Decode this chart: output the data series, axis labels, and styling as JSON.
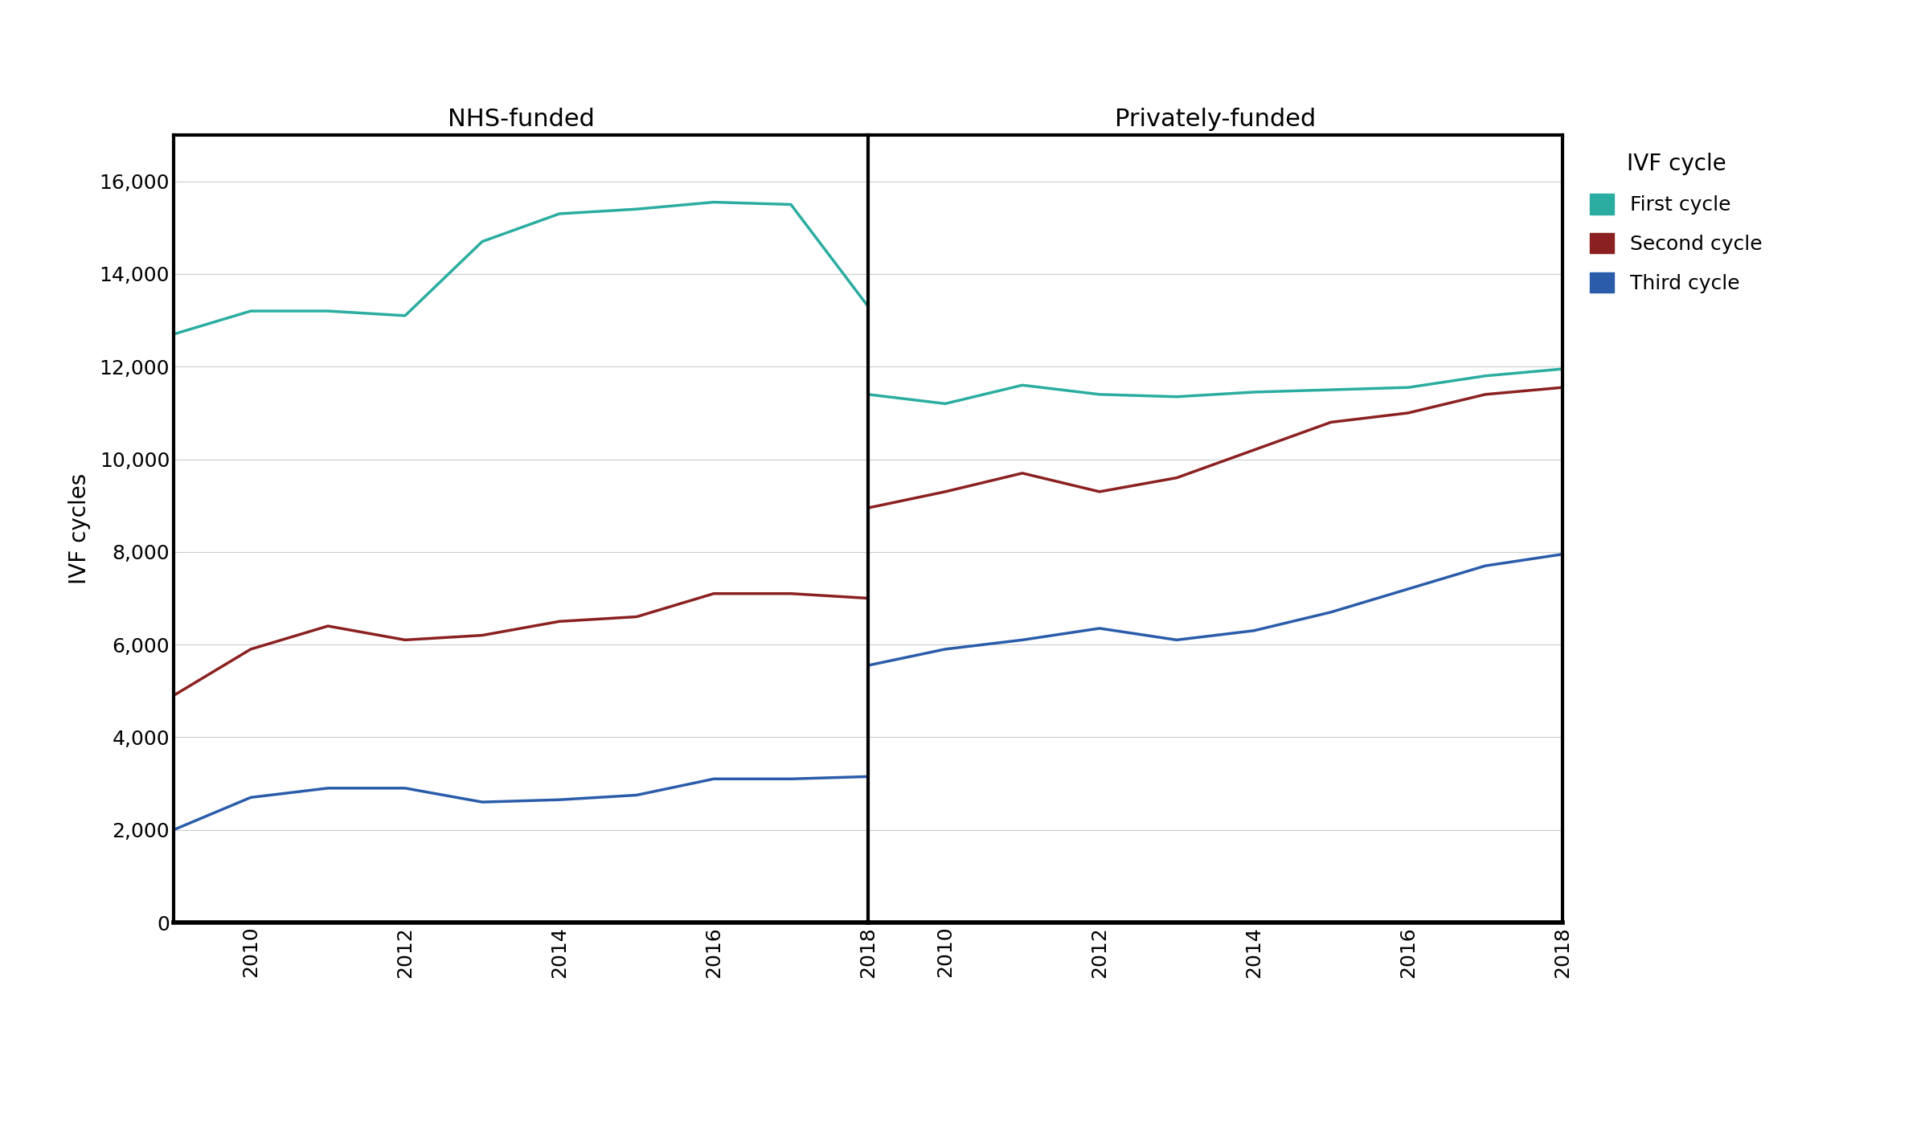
{
  "years": [
    2009,
    2010,
    2011,
    2012,
    2013,
    2014,
    2015,
    2016,
    2017,
    2018
  ],
  "nhs_first": [
    12700,
    13200,
    13200,
    13100,
    14700,
    15300,
    15400,
    15550,
    15500,
    13300
  ],
  "nhs_second": [
    4900,
    5900,
    6400,
    6100,
    6200,
    6500,
    6600,
    7100,
    7100,
    7000
  ],
  "nhs_third": [
    2000,
    2700,
    2900,
    2900,
    2600,
    2650,
    2750,
    3100,
    3100,
    3150
  ],
  "priv_first": [
    11400,
    11200,
    11600,
    11400,
    11350,
    11450,
    11500,
    11550,
    11800,
    11950
  ],
  "priv_second": [
    8950,
    9300,
    9700,
    9300,
    9600,
    10200,
    10800,
    11000,
    11400,
    11550
  ],
  "priv_third": [
    5550,
    5900,
    6100,
    6350,
    6100,
    6300,
    6700,
    7200,
    7700,
    7950
  ],
  "color_first": "#2aada0",
  "color_second": "#8b2020",
  "color_third": "#2a5caa",
  "ylabel": "IVF cycles",
  "title_nhs": "NHS-funded",
  "title_priv": "Privately-funded",
  "legend_title": "IVF cycle",
  "legend_labels": [
    "First cycle",
    "Second cycle",
    "Third cycle"
  ],
  "ylim": [
    0,
    17000
  ],
  "yticks": [
    0,
    2000,
    4000,
    6000,
    8000,
    10000,
    12000,
    14000,
    16000
  ],
  "xtick_years": [
    2010,
    2012,
    2014,
    2016,
    2018
  ],
  "line_width": 2.5,
  "background_color": "#ffffff",
  "grid_color": "#cccccc",
  "spine_lw": 2.0,
  "title_fontsize": 22,
  "tick_fontsize": 18,
  "ylabel_fontsize": 20,
  "legend_title_fontsize": 20,
  "legend_fontsize": 18
}
